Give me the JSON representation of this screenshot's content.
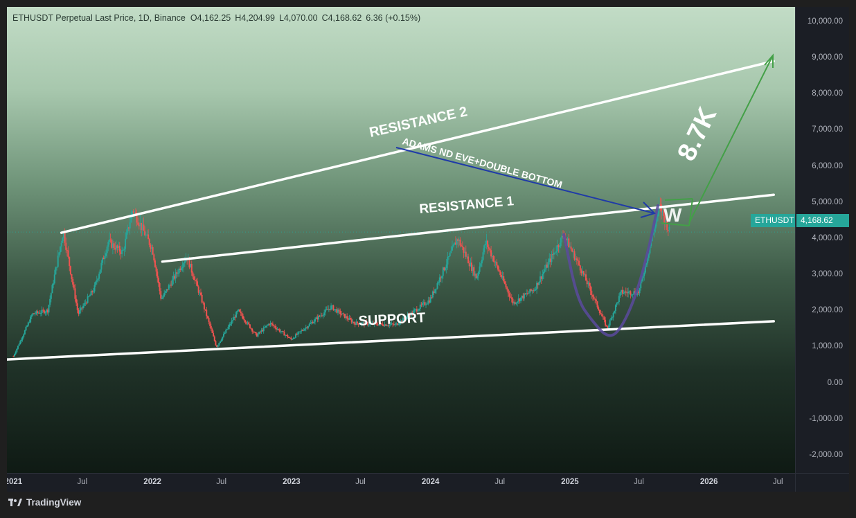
{
  "header": {
    "symbol": "ETHUSDT Perpetual Last Price, 1D, Binance",
    "o_label": "O",
    "o": "4,162.25",
    "h_label": "H",
    "h": "4,204.99",
    "l_label": "L",
    "l": "4,070.00",
    "c_label": "C",
    "c": "4,168.62",
    "change": "6.36 (+0.15%)"
  },
  "price_tag": {
    "symbol": "ETHUSDT",
    "price": "4,168.62"
  },
  "brand": {
    "name": "TradingView",
    "icon": "tradingview-logo-icon"
  },
  "colors": {
    "up": "#26a69a",
    "down": "#ef5350",
    "tag": "#26a69a",
    "annotation": "#ffffff",
    "arrow_blue": "#1f3aa8",
    "arrow_green": "#43a047",
    "cup": "#5b4a9e"
  },
  "chart_data": {
    "type": "candlestick",
    "symbol": "ETHUSDT",
    "interval": "1D",
    "yaxis": {
      "ticks": [
        "10,000.00",
        "9,000.00",
        "8,000.00",
        "7,000.00",
        "6,000.00",
        "5,000.00",
        "4,000.00",
        "3,000.00",
        "2,000.00",
        "1,000.00",
        "0.00",
        "-1,000.00",
        "-2,000.00"
      ],
      "tick_values": [
        10000,
        9000,
        8000,
        7000,
        6000,
        5000,
        4000,
        3000,
        2000,
        1000,
        0,
        -1000,
        -2000
      ],
      "range": [
        -2500,
        10400
      ]
    },
    "xaxis": {
      "labels": [
        "2021",
        "Jul",
        "2022",
        "Jul",
        "2023",
        "Jul",
        "2024",
        "Jul",
        "2025",
        "Jul",
        "2026",
        "Jul"
      ],
      "years": [
        "2021",
        "2022",
        "2023",
        "2024",
        "2025",
        "2026"
      ],
      "range": [
        "2020-12-15",
        "2026-08-15"
      ]
    },
    "price_path": [
      [
        "2021-01-01",
        730
      ],
      [
        "2021-02-20",
        1900
      ],
      [
        "2021-04-01",
        2000
      ],
      [
        "2021-05-12",
        4200
      ],
      [
        "2021-06-20",
        1900
      ],
      [
        "2021-08-01",
        2600
      ],
      [
        "2021-09-07",
        3900
      ],
      [
        "2021-10-15",
        3600
      ],
      [
        "2021-11-10",
        4800
      ],
      [
        "2022-01-01",
        3700
      ],
      [
        "2022-01-24",
        2300
      ],
      [
        "2022-04-01",
        3500
      ],
      [
        "2022-05-10",
        2300
      ],
      [
        "2022-06-18",
        990
      ],
      [
        "2022-08-14",
        1990
      ],
      [
        "2022-10-01",
        1300
      ],
      [
        "2022-11-05",
        1650
      ],
      [
        "2022-12-31",
        1200
      ],
      [
        "2023-04-15",
        2100
      ],
      [
        "2023-06-15",
        1650
      ],
      [
        "2023-10-01",
        1600
      ],
      [
        "2023-12-31",
        2300
      ],
      [
        "2024-03-12",
        4000
      ],
      [
        "2024-05-01",
        2900
      ],
      [
        "2024-05-25",
        3900
      ],
      [
        "2024-08-05",
        2200
      ],
      [
        "2024-09-30",
        2600
      ],
      [
        "2024-12-16",
        4100
      ],
      [
        "2025-02-01",
        3100
      ],
      [
        "2025-04-09",
        1500
      ],
      [
        "2025-05-15",
        2500
      ],
      [
        "2025-07-01",
        2500
      ],
      [
        "2025-08-24",
        4900
      ],
      [
        "2025-09-20",
        4168.62
      ]
    ],
    "last": 4168.62,
    "annotations": {
      "lines": [
        {
          "label": "RESISTANCE 2",
          "from": [
            "2021-05-07",
            4150
          ],
          "to": [
            "2026-06-20",
            8900
          ]
        },
        {
          "label": "RESISTANCE 1",
          "from": [
            "2022-01-27",
            3350
          ],
          "to": [
            "2026-06-20",
            5200
          ]
        },
        {
          "label": "SUPPORT",
          "from": [
            "2020-12-15",
            640
          ],
          "to": [
            "2026-06-20",
            1700
          ]
        }
      ],
      "texts": [
        "RESISTANCE 2",
        "RESISTANCE 1",
        "SUPPORT",
        "ADAMS ND EVE+DOUBLE BOTTOM",
        "8.7K",
        "W"
      ]
    }
  }
}
